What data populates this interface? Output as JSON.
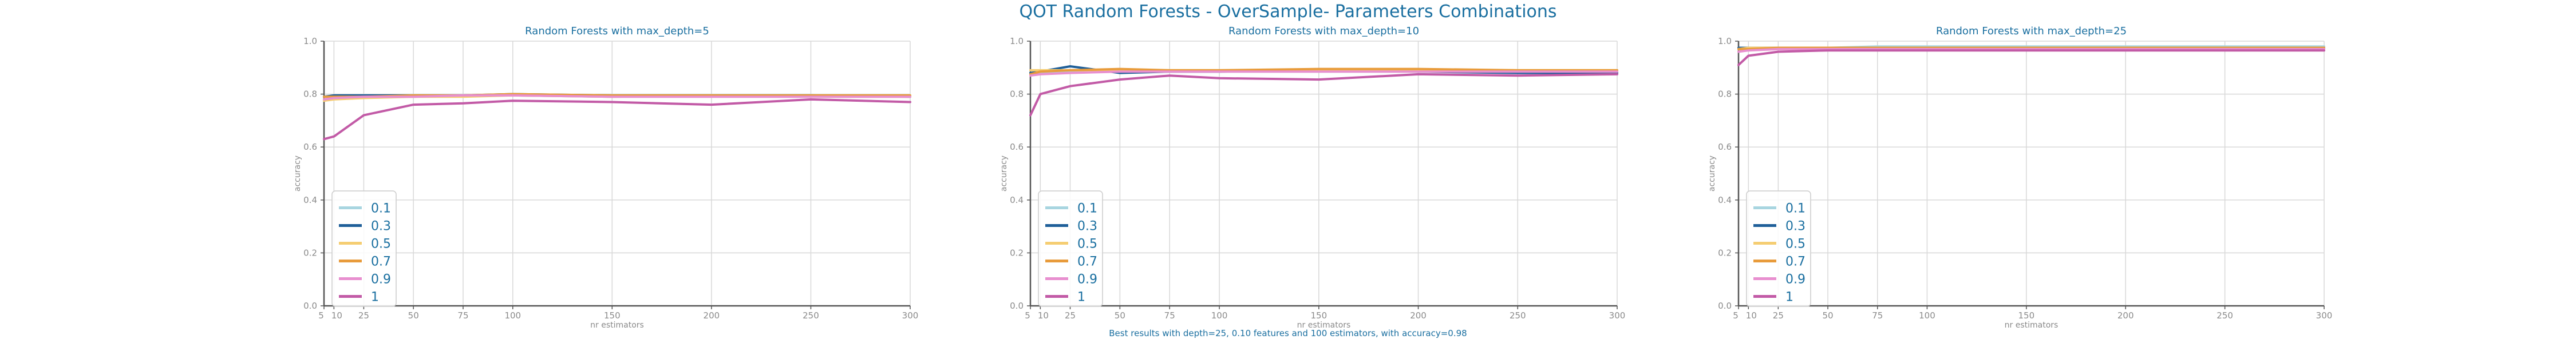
{
  "figure": {
    "title": "QOT Random Forests - OverSample- Parameters Combinations",
    "footnote": "Best results with depth=25, 0.10 features and 100 estimators, with accuracy=0.98",
    "colors": {
      "title": "#1a6fa0",
      "ticks": "#8a8a8a",
      "grid": "#d8d8d8",
      "axes": "#555555"
    }
  },
  "chart_data": [
    {
      "type": "line",
      "title": "Random Forests with max_depth=5",
      "xlabel": "nr estimators",
      "ylabel": "accuracy",
      "x": [
        5,
        10,
        25,
        50,
        75,
        100,
        150,
        200,
        250,
        300
      ],
      "xticks": [
        5,
        10,
        25,
        50,
        75,
        100,
        150,
        200,
        250,
        300
      ],
      "yticks": [
        0.0,
        0.2,
        0.4,
        0.6,
        0.8,
        1.0
      ],
      "ylim": [
        0,
        1
      ],
      "grid": true,
      "legend": "lower-left",
      "series": [
        {
          "name": "0.1",
          "color": "#a8d5e0",
          "values": [
            0.78,
            0.785,
            0.79,
            0.79,
            0.795,
            0.795,
            0.79,
            0.795,
            0.795,
            0.79
          ]
        },
        {
          "name": "0.3",
          "color": "#1f5f99",
          "values": [
            0.79,
            0.795,
            0.795,
            0.795,
            0.795,
            0.8,
            0.795,
            0.795,
            0.795,
            0.79
          ]
        },
        {
          "name": "0.5",
          "color": "#f5cd72",
          "values": [
            0.775,
            0.78,
            0.785,
            0.79,
            0.79,
            0.795,
            0.79,
            0.795,
            0.79,
            0.79
          ]
        },
        {
          "name": "0.7",
          "color": "#e89b3b",
          "values": [
            0.79,
            0.79,
            0.79,
            0.795,
            0.795,
            0.8,
            0.795,
            0.795,
            0.795,
            0.795
          ]
        },
        {
          "name": "0.9",
          "color": "#e88fcf",
          "values": [
            0.78,
            0.785,
            0.79,
            0.79,
            0.795,
            0.795,
            0.79,
            0.79,
            0.79,
            0.79
          ]
        },
        {
          "name": "1",
          "color": "#c25aa6",
          "values": [
            0.63,
            0.64,
            0.72,
            0.76,
            0.765,
            0.775,
            0.77,
            0.76,
            0.78,
            0.77
          ]
        }
      ]
    },
    {
      "type": "line",
      "title": "Random Forests with max_depth=10",
      "xlabel": "nr estimators",
      "ylabel": "accuracy",
      "x": [
        5,
        10,
        25,
        50,
        75,
        100,
        150,
        200,
        250,
        300
      ],
      "xticks": [
        5,
        10,
        25,
        50,
        75,
        100,
        150,
        200,
        250,
        300
      ],
      "yticks": [
        0.0,
        0.2,
        0.4,
        0.6,
        0.8,
        1.0
      ],
      "ylim": [
        0,
        1
      ],
      "grid": true,
      "legend": "lower-left",
      "series": [
        {
          "name": "0.1",
          "color": "#a8d5e0",
          "values": [
            0.88,
            0.88,
            0.885,
            0.885,
            0.885,
            0.885,
            0.885,
            0.885,
            0.885,
            0.88
          ]
        },
        {
          "name": "0.3",
          "color": "#1f5f99",
          "values": [
            0.88,
            0.885,
            0.905,
            0.88,
            0.885,
            0.885,
            0.89,
            0.885,
            0.88,
            0.88
          ]
        },
        {
          "name": "0.5",
          "color": "#f5cd72",
          "values": [
            0.89,
            0.89,
            0.89,
            0.89,
            0.89,
            0.89,
            0.89,
            0.89,
            0.89,
            0.89
          ]
        },
        {
          "name": "0.7",
          "color": "#e89b3b",
          "values": [
            0.875,
            0.885,
            0.89,
            0.895,
            0.89,
            0.89,
            0.895,
            0.895,
            0.89,
            0.89
          ]
        },
        {
          "name": "0.9",
          "color": "#e88fcf",
          "values": [
            0.87,
            0.875,
            0.88,
            0.885,
            0.885,
            0.885,
            0.885,
            0.885,
            0.885,
            0.885
          ]
        },
        {
          "name": "1",
          "color": "#c25aa6",
          "values": [
            0.72,
            0.8,
            0.83,
            0.855,
            0.87,
            0.86,
            0.855,
            0.875,
            0.87,
            0.875
          ]
        }
      ]
    },
    {
      "type": "line",
      "title": "Random Forests with max_depth=25",
      "xlabel": "nr estimators",
      "ylabel": "accuracy",
      "x": [
        5,
        10,
        25,
        50,
        75,
        100,
        150,
        200,
        250,
        300
      ],
      "xticks": [
        5,
        10,
        25,
        50,
        75,
        100,
        150,
        200,
        250,
        300
      ],
      "yticks": [
        0.0,
        0.2,
        0.4,
        0.6,
        0.8,
        1.0
      ],
      "ylim": [
        0,
        1
      ],
      "grid": true,
      "legend": "lower-left",
      "series": [
        {
          "name": "0.1",
          "color": "#a8d5e0",
          "values": [
            0.96,
            0.97,
            0.975,
            0.975,
            0.98,
            0.98,
            0.98,
            0.98,
            0.98,
            0.98
          ]
        },
        {
          "name": "0.3",
          "color": "#1f5f99",
          "values": [
            0.975,
            0.975,
            0.975,
            0.975,
            0.975,
            0.975,
            0.975,
            0.975,
            0.975,
            0.975
          ]
        },
        {
          "name": "0.5",
          "color": "#f5cd72",
          "values": [
            0.97,
            0.975,
            0.975,
            0.975,
            0.975,
            0.975,
            0.975,
            0.975,
            0.975,
            0.975
          ]
        },
        {
          "name": "0.7",
          "color": "#e89b3b",
          "values": [
            0.97,
            0.97,
            0.975,
            0.975,
            0.975,
            0.975,
            0.975,
            0.975,
            0.975,
            0.975
          ]
        },
        {
          "name": "0.9",
          "color": "#e88fcf",
          "values": [
            0.96,
            0.965,
            0.97,
            0.97,
            0.97,
            0.97,
            0.97,
            0.97,
            0.97,
            0.97
          ]
        },
        {
          "name": "1",
          "color": "#c25aa6",
          "values": [
            0.91,
            0.945,
            0.96,
            0.965,
            0.965,
            0.965,
            0.965,
            0.965,
            0.965,
            0.965
          ]
        }
      ]
    }
  ]
}
